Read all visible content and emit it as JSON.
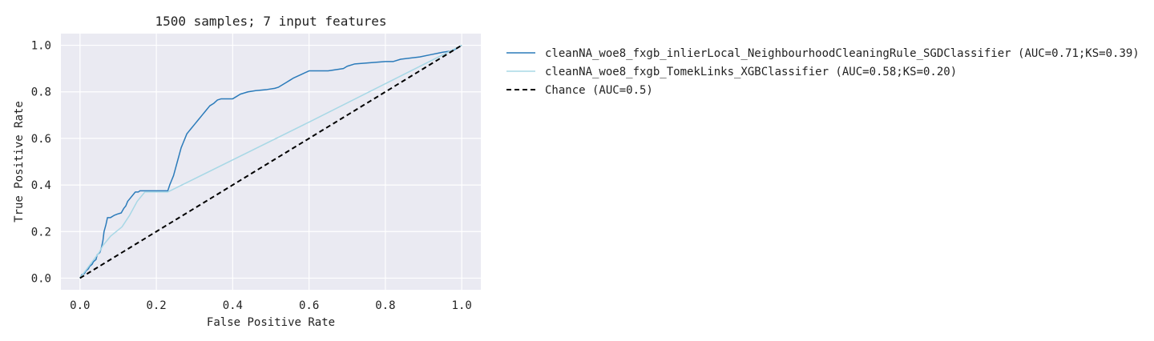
{
  "chart_data": {
    "type": "line",
    "title": "1500 samples; 7 input features",
    "xlabel": "False Positive Rate",
    "ylabel": "True Positive Rate",
    "xlim": [
      -0.05,
      1.05
    ],
    "ylim": [
      -0.05,
      1.05
    ],
    "xticks": [
      0.0,
      0.2,
      0.4,
      0.6,
      0.8,
      1.0
    ],
    "yticks": [
      0.0,
      0.2,
      0.4,
      0.6,
      0.8,
      1.0
    ],
    "xtick_labels": [
      "0.0",
      "0.2",
      "0.4",
      "0.6",
      "0.8",
      "1.0"
    ],
    "ytick_labels": [
      "0.0",
      "0.2",
      "0.4",
      "0.6",
      "0.8",
      "1.0"
    ],
    "grid": true,
    "background": "#eaeaf2",
    "legend_position": "outside-right",
    "series": [
      {
        "name": "cleanNA_woe8_fxgb_inlierLocal_NeighbourhoodCleaningRule_SGDClassifier (AUC=0.71;KS=0.39)",
        "color": "#2b7bba",
        "dash": "solid",
        "x": [
          0.0,
          0.005,
          0.012,
          0.015,
          0.022,
          0.025,
          0.032,
          0.035,
          0.042,
          0.045,
          0.052,
          0.056,
          0.06,
          0.063,
          0.068,
          0.072,
          0.08,
          0.085,
          0.09,
          0.098,
          0.108,
          0.115,
          0.12,
          0.125,
          0.13,
          0.14,
          0.145,
          0.153,
          0.157,
          0.162,
          0.165,
          0.2,
          0.23,
          0.235,
          0.24,
          0.245,
          0.25,
          0.255,
          0.26,
          0.265,
          0.27,
          0.275,
          0.28,
          0.285,
          0.29,
          0.3,
          0.31,
          0.32,
          0.33,
          0.34,
          0.35,
          0.36,
          0.37,
          0.38,
          0.4,
          0.41,
          0.42,
          0.44,
          0.46,
          0.49,
          0.51,
          0.52,
          0.53,
          0.54,
          0.55,
          0.56,
          0.58,
          0.6,
          0.65,
          0.69,
          0.7,
          0.72,
          0.8,
          0.82,
          0.84,
          0.89,
          0.92,
          0.95,
          0.97,
          0.98,
          1.0
        ],
        "y": [
          0.0,
          0.015,
          0.02,
          0.03,
          0.04,
          0.05,
          0.06,
          0.07,
          0.08,
          0.1,
          0.11,
          0.13,
          0.16,
          0.2,
          0.23,
          0.26,
          0.26,
          0.265,
          0.27,
          0.275,
          0.28,
          0.3,
          0.31,
          0.33,
          0.34,
          0.36,
          0.37,
          0.37,
          0.375,
          0.375,
          0.375,
          0.375,
          0.375,
          0.4,
          0.42,
          0.44,
          0.47,
          0.5,
          0.53,
          0.56,
          0.58,
          0.6,
          0.62,
          0.63,
          0.64,
          0.66,
          0.68,
          0.7,
          0.72,
          0.74,
          0.75,
          0.765,
          0.77,
          0.77,
          0.77,
          0.78,
          0.79,
          0.8,
          0.805,
          0.81,
          0.815,
          0.82,
          0.83,
          0.84,
          0.85,
          0.86,
          0.875,
          0.89,
          0.89,
          0.9,
          0.91,
          0.92,
          0.93,
          0.93,
          0.94,
          0.95,
          0.96,
          0.97,
          0.975,
          0.98,
          1.0
        ]
      },
      {
        "name": "cleanNA_woe8_fxgb_TomekLinks_XGBClassifier (AUC=0.58;KS=0.20)",
        "color": "#a8d8e6",
        "dash": "solid",
        "x": [
          0.0,
          0.05,
          0.06,
          0.08,
          0.11,
          0.13,
          0.15,
          0.17,
          0.23,
          0.6,
          1.0
        ],
        "y": [
          0.0,
          0.11,
          0.14,
          0.18,
          0.22,
          0.27,
          0.33,
          0.37,
          0.37,
          0.67,
          1.0
        ]
      },
      {
        "name": "Chance (AUC=0.5)",
        "color": "#000000",
        "dash": "dashed",
        "x": [
          0.0,
          1.0
        ],
        "y": [
          0.0,
          1.0
        ]
      }
    ]
  }
}
